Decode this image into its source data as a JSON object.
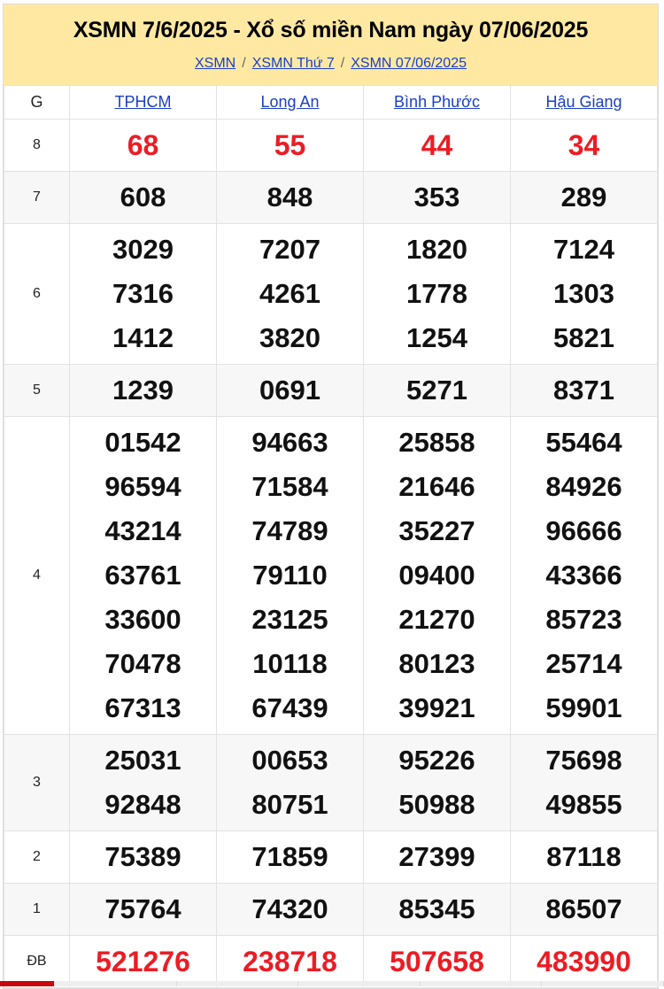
{
  "header": {
    "title": "XSMN 7/6/2025 - Xổ số miền Nam ngày 07/06/2025",
    "breadcrumb": [
      "XSMN",
      "XSMN Thứ 7",
      "XSMN 07/06/2025"
    ],
    "separator": "/"
  },
  "table": {
    "g_label": "G",
    "provinces": [
      "TPHCM",
      "Long An",
      "Bình Phước",
      "Hậu Giang"
    ],
    "prizes": [
      {
        "label": "8",
        "red": true,
        "values": [
          [
            "68"
          ],
          [
            "55"
          ],
          [
            "44"
          ],
          [
            "34"
          ]
        ]
      },
      {
        "label": "7",
        "values": [
          [
            "608"
          ],
          [
            "848"
          ],
          [
            "353"
          ],
          [
            "289"
          ]
        ]
      },
      {
        "label": "6",
        "values": [
          [
            "3029",
            "7316",
            "1412"
          ],
          [
            "7207",
            "4261",
            "3820"
          ],
          [
            "1820",
            "1778",
            "1254"
          ],
          [
            "7124",
            "1303",
            "5821"
          ]
        ]
      },
      {
        "label": "5",
        "values": [
          [
            "1239"
          ],
          [
            "0691"
          ],
          [
            "5271"
          ],
          [
            "8371"
          ]
        ]
      },
      {
        "label": "4",
        "values": [
          [
            "01542",
            "96594",
            "43214",
            "63761",
            "33600",
            "70478",
            "67313"
          ],
          [
            "94663",
            "71584",
            "74789",
            "79110",
            "23125",
            "10118",
            "67439"
          ],
          [
            "25858",
            "21646",
            "35227",
            "09400",
            "21270",
            "80123",
            "39921"
          ],
          [
            "55464",
            "84926",
            "96666",
            "43366",
            "85723",
            "25714",
            "59901"
          ]
        ]
      },
      {
        "label": "3",
        "values": [
          [
            "25031",
            "92848"
          ],
          [
            "00653",
            "80751"
          ],
          [
            "95226",
            "50988"
          ],
          [
            "75698",
            "49855"
          ]
        ]
      },
      {
        "label": "2",
        "values": [
          [
            "75389"
          ],
          [
            "71859"
          ],
          [
            "27399"
          ],
          [
            "87118"
          ]
        ]
      },
      {
        "label": "1",
        "values": [
          [
            "75764"
          ],
          [
            "74320"
          ],
          [
            "85345"
          ],
          [
            "86507"
          ]
        ]
      },
      {
        "label": "ĐB",
        "red": true,
        "values": [
          [
            "521276"
          ],
          [
            "238718"
          ],
          [
            "507658"
          ],
          [
            "483990"
          ]
        ]
      }
    ]
  },
  "colors": {
    "header_bg": "#ffe9a2",
    "link": "#1a3fc7",
    "red": "#ec1c24",
    "alt_row": "#f7f7f7"
  }
}
